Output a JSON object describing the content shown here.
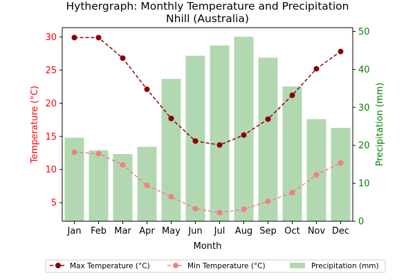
{
  "chart_data": {
    "type": "bar+line",
    "title": "Hythergraph: Monthly Temperature and Precipitation",
    "subtitle": "Nhill (Australia)",
    "categories": [
      "Jan",
      "Feb",
      "Mar",
      "Apr",
      "May",
      "Jun",
      "Jul",
      "Aug",
      "Sep",
      "Oct",
      "Nov",
      "Dec"
    ],
    "xlabel": "Month",
    "ylabel_left": "Temperature (°C)",
    "ylabel_right": "Precipitation (mm)",
    "ylim_left": [
      2.2,
      31.4
    ],
    "ylim_right": [
      0,
      51
    ],
    "yticks_left": [
      5,
      10,
      15,
      20,
      25,
      30
    ],
    "yticks_right": [
      0,
      10,
      20,
      30,
      40,
      50
    ],
    "legend_position": "bottom",
    "grid": false,
    "series": [
      {
        "name": "Max Temperature (°C)",
        "axis": "left",
        "kind": "line",
        "color": "#8b0000",
        "values": [
          29.9,
          29.9,
          26.8,
          22.1,
          17.7,
          14.3,
          13.7,
          15.2,
          17.6,
          21.2,
          25.2,
          27.8
        ]
      },
      {
        "name": "Min Temperature (°C)",
        "axis": "left",
        "kind": "line",
        "color": "#f08080",
        "values": [
          12.6,
          12.4,
          10.7,
          7.6,
          5.9,
          4.1,
          3.5,
          4.0,
          5.2,
          6.5,
          9.2,
          11.0
        ]
      },
      {
        "name": "Precipitation (mm)",
        "axis": "right",
        "kind": "bar",
        "color": "#b2d8b2",
        "values": [
          22.0,
          18.7,
          17.7,
          19.6,
          37.5,
          43.6,
          46.3,
          48.6,
          43.1,
          35.5,
          26.9,
          24.6
        ]
      }
    ],
    "colors": {
      "left_axis": "#ff0000",
      "right_axis": "#008000",
      "frame": "#000000"
    }
  }
}
